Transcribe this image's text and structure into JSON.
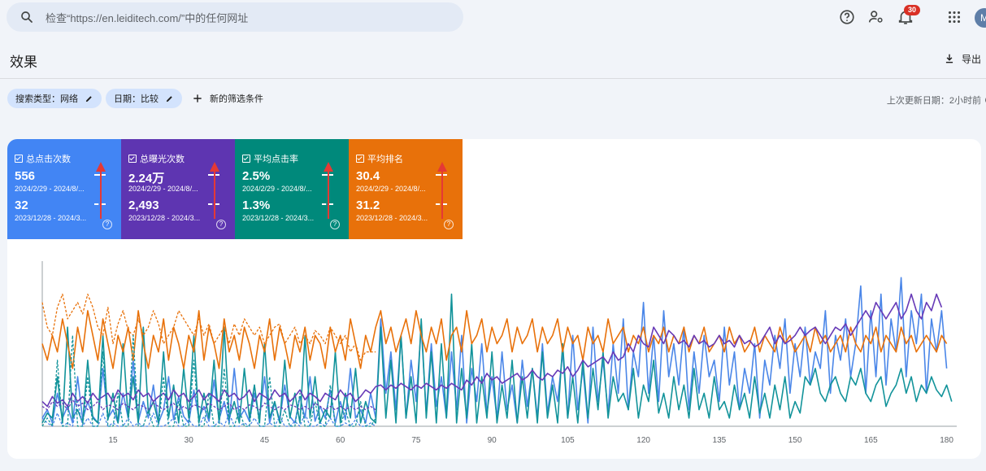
{
  "search": {
    "placeholder": "检查“https://en.leiditech.com/”中的任何网址"
  },
  "topbar": {
    "help_icon": "help-circle-icon",
    "admin_icon": "manage-accounts-icon",
    "notif_icon": "notifications-icon",
    "notif_count": "30",
    "apps_icon": "apps-grid-icon",
    "avatar_initial": "M"
  },
  "page": {
    "title": "效果",
    "export_label": "导出"
  },
  "filters": {
    "chips": [
      {
        "label": "搜索类型：网络"
      },
      {
        "label": "日期：比较"
      }
    ],
    "add_label": "新的筛选条件",
    "updated": "上次更新日期：2小时前"
  },
  "cards": [
    {
      "label": "总点击次数",
      "value1": "556",
      "date1": "2024/2/29 - 2024/8/...",
      "value2": "32",
      "date2": "2023/12/28 - 2024/3...",
      "color": "#4285f4"
    },
    {
      "label": "总曝光次数",
      "value1": "2.24万",
      "date1": "2024/2/29 - 2024/8/...",
      "value2": "2,493",
      "date2": "2023/12/28 - 2024/3...",
      "color": "#5e35b1"
    },
    {
      "label": "平均点击率",
      "value1": "2.5%",
      "date1": "2024/2/29 - 2024/8/...",
      "value2": "1.3%",
      "date2": "2023/12/28 - 2024/3...",
      "color": "#00897b"
    },
    {
      "label": "平均排名",
      "value1": "30.4",
      "date1": "2024/2/29 - 2024/8/...",
      "value2": "31.2",
      "date2": "2023/12/28 - 2024/3...",
      "color": "#e8710a"
    }
  ],
  "chart_data": {
    "type": "line",
    "x_ticks": [
      15,
      30,
      45,
      60,
      75,
      90,
      105,
      120,
      135,
      150,
      165,
      180
    ],
    "xlim": [
      1,
      182
    ],
    "ylim": [
      0,
      1
    ],
    "grid": false,
    "series": [
      {
        "color": "#4a86e8",
        "values": [
          0.05,
          0.1,
          0.02,
          0.2,
          0.05,
          0.12,
          0.02,
          0.3,
          0.04,
          0.15,
          0.06,
          0.02,
          0.35,
          0.05,
          0.1,
          0.02,
          0.2,
          0.05,
          0.4,
          0.03,
          0.15,
          0.05,
          0.25,
          0.02,
          0.1,
          0.3,
          0.04,
          0.18,
          0.06,
          0.02,
          0.22,
          0.05,
          0.12,
          0.03,
          0.28,
          0.04,
          0.15,
          0.02,
          0.35,
          0.05,
          0.1,
          0.03,
          0.2,
          0.05,
          0.3,
          0.02,
          0.14,
          0.04,
          0.25,
          0.06,
          0.02,
          0.18,
          0.05,
          0.3,
          0.03,
          0.12,
          0.05,
          0.22,
          0.02,
          0.15,
          0.04,
          0.35,
          0.05,
          0.1,
          0.02,
          0.2,
          0.05,
          0.65,
          0.2,
          0.45,
          0.1,
          0.55,
          0.05,
          0.4,
          0.15,
          0.6,
          0.08,
          0.5,
          0.12,
          0.3,
          0.05,
          0.45,
          0.1,
          0.55,
          0.02,
          0.35,
          0.15,
          0.5,
          0.08,
          0.3,
          0.05,
          0.45,
          0.1,
          0.25,
          0.02,
          0.4,
          0.12,
          0.35,
          0.05,
          0.5,
          0.08,
          0.3,
          0.15,
          0.45,
          0.05,
          0.55,
          0.1,
          0.35,
          0.02,
          0.6,
          0.15,
          0.4,
          0.08,
          0.5,
          0.2,
          0.65,
          0.1,
          0.45,
          0.3,
          0.75,
          0.2,
          0.55,
          0.15,
          0.7,
          0.3,
          0.5,
          0.25,
          0.6,
          0.1,
          0.45,
          0.2,
          0.55,
          0.3,
          0.4,
          0.15,
          0.6,
          0.25,
          0.45,
          0.1,
          0.35,
          0.2,
          0.5,
          0.05,
          0.4,
          0.25,
          0.55,
          0.35,
          0.65,
          0.2,
          0.5,
          0.3,
          0.6,
          0.25,
          0.45,
          0.35,
          0.7,
          0.2,
          0.55,
          0.4,
          0.65,
          0.3,
          0.5,
          0.85,
          0.2,
          0.7,
          0.3,
          0.8,
          0.25,
          0.65,
          0.45,
          0.9,
          0.3,
          0.7,
          0.5,
          0.8,
          0.2,
          0.65,
          0.45,
          0.7,
          0.35
        ]
      },
      {
        "color": "#12939a",
        "values": [
          0.02,
          0.08,
          0.05,
          0.3,
          0.02,
          0.6,
          0.05,
          0.1,
          0.02,
          0.4,
          0.05,
          0.02,
          0.55,
          0.04,
          0.2,
          0.02,
          0.5,
          0.05,
          0.3,
          0.02,
          0.6,
          0.08,
          0.15,
          0.02,
          0.45,
          0.05,
          0.25,
          0.02,
          0.35,
          0.05,
          0.55,
          0.02,
          0.2,
          0.05,
          0.4,
          0.02,
          0.6,
          0.05,
          0.15,
          0.02,
          0.35,
          0.05,
          0.25,
          0.02,
          0.5,
          0.05,
          0.15,
          0.02,
          0.4,
          0.05,
          0.2,
          0.02,
          0.55,
          0.05,
          0.3,
          0.02,
          0.1,
          0.05,
          0.45,
          0.02,
          0.2,
          0.05,
          0.35,
          0.02,
          0.15,
          0.05,
          0.02,
          0.6,
          0.05,
          0.4,
          0.02,
          0.55,
          0.05,
          0.3,
          0.02,
          0.65,
          0.05,
          0.45,
          0.02,
          0.5,
          0.05,
          0.8,
          0.02,
          0.35,
          0.05,
          0.5,
          0.02,
          0.3,
          0.05,
          0.45,
          0.02,
          0.25,
          0.05,
          0.4,
          0.02,
          0.3,
          0.05,
          0.35,
          0.02,
          0.45,
          0.05,
          0.25,
          0.02,
          0.5,
          0.05,
          0.3,
          0.02,
          0.4,
          0.05,
          0.35,
          0.1,
          0.45,
          0.05,
          0.3,
          0.15,
          0.2,
          0.1,
          0.35,
          0.05,
          0.25,
          0.15,
          0.4,
          0.08,
          0.2,
          0.05,
          0.3,
          0.1,
          0.25,
          0.05,
          0.35,
          0.1,
          0.2,
          0.05,
          0.3,
          0.1,
          0.15,
          0.05,
          0.25,
          0.1,
          0.2,
          0.05,
          0.3,
          0.08,
          0.2,
          0.05,
          0.25,
          0.1,
          0.3,
          0.05,
          0.15,
          0.08,
          0.3,
          0.25,
          0.35,
          0.2,
          0.15,
          0.25,
          0.3,
          0.2,
          0.15,
          0.3,
          0.25,
          0.35,
          0.2,
          0.15,
          0.25,
          0.3,
          0.12,
          0.2,
          0.25,
          0.35,
          0.2,
          0.3,
          0.15,
          0.25,
          0.2,
          0.3,
          0.22,
          0.18,
          0.25,
          0.15
        ]
      },
      {
        "color": "#e8710a",
        "values": [
          0.5,
          0.4,
          0.55,
          0.45,
          0.65,
          0.5,
          0.35,
          0.6,
          0.45,
          0.7,
          0.55,
          0.4,
          0.65,
          0.5,
          0.35,
          0.55,
          0.45,
          0.6,
          0.4,
          0.7,
          0.5,
          0.35,
          0.55,
          0.45,
          0.65,
          0.4,
          0.6,
          0.5,
          0.35,
          0.55,
          0.45,
          0.7,
          0.4,
          0.6,
          0.5,
          0.35,
          0.65,
          0.45,
          0.55,
          0.4,
          0.6,
          0.5,
          0.35,
          0.55,
          0.45,
          0.65,
          0.4,
          0.6,
          0.5,
          0.35,
          0.55,
          0.45,
          0.6,
          0.4,
          0.55,
          0.5,
          0.35,
          0.6,
          0.45,
          0.55,
          0.4,
          0.65,
          0.5,
          0.35,
          0.55,
          0.45,
          0.6,
          0.7,
          0.5,
          0.6,
          0.45,
          0.55,
          0.65,
          0.5,
          0.7,
          0.55,
          0.45,
          0.6,
          0.5,
          0.65,
          0.4,
          0.55,
          0.6,
          0.45,
          0.7,
          0.5,
          0.55,
          0.65,
          0.45,
          0.6,
          0.5,
          0.55,
          0.65,
          0.45,
          0.6,
          0.5,
          0.55,
          0.65,
          0.45,
          0.6,
          0.5,
          0.55,
          0.65,
          0.45,
          0.6,
          0.5,
          0.55,
          0.4,
          0.6,
          0.5,
          0.55,
          0.45,
          0.65,
          0.5,
          0.55,
          0.6,
          0.45,
          0.55,
          0.5,
          0.6,
          0.45,
          0.55,
          0.5,
          0.6,
          0.45,
          0.55,
          0.5,
          0.6,
          0.45,
          0.55,
          0.5,
          0.6,
          0.45,
          0.5,
          0.55,
          0.45,
          0.6,
          0.5,
          0.55,
          0.45,
          0.5,
          0.6,
          0.45,
          0.55,
          0.5,
          0.45,
          0.6,
          0.5,
          0.55,
          0.45,
          0.5,
          0.55,
          0.45,
          0.6,
          0.5,
          0.55,
          0.45,
          0.5,
          0.55,
          0.45,
          0.6,
          0.5,
          0.45,
          0.55,
          0.5,
          0.6,
          0.45,
          0.55,
          0.5,
          0.45,
          0.6,
          0.5,
          0.55,
          0.45,
          0.5,
          0.55,
          0.5,
          0.45,
          0.55,
          0.5
        ]
      },
      {
        "color": "#673ab7",
        "values": [
          0.15,
          0.12,
          0.18,
          0.14,
          0.16,
          0.12,
          0.2,
          0.15,
          0.18,
          0.14,
          0.2,
          0.16,
          0.18,
          0.2,
          0.15,
          0.22,
          0.18,
          0.2,
          0.16,
          0.22,
          0.18,
          0.2,
          0.15,
          0.18,
          0.2,
          0.16,
          0.22,
          0.18,
          0.2,
          0.15,
          0.18,
          0.22,
          0.16,
          0.2,
          0.18,
          0.15,
          0.22,
          0.18,
          0.2,
          0.16,
          0.18,
          0.22,
          0.15,
          0.2,
          0.18,
          0.16,
          0.22,
          0.18,
          0.2,
          0.15,
          0.18,
          0.22,
          0.16,
          0.2,
          0.18,
          0.15,
          0.2,
          0.18,
          0.16,
          0.22,
          0.18,
          0.2,
          0.15,
          0.18,
          0.22,
          0.2,
          0.24,
          0.25,
          0.22,
          0.25,
          0.23,
          0.26,
          0.24,
          0.22,
          0.25,
          0.23,
          0.26,
          0.24,
          0.22,
          0.25,
          0.23,
          0.26,
          0.24,
          0.22,
          0.28,
          0.25,
          0.3,
          0.26,
          0.32,
          0.28,
          0.3,
          0.26,
          0.28,
          0.3,
          0.32,
          0.28,
          0.3,
          0.34,
          0.3,
          0.28,
          0.32,
          0.3,
          0.34,
          0.32,
          0.36,
          0.3,
          0.34,
          0.4,
          0.36,
          0.38,
          0.4,
          0.42,
          0.38,
          0.45,
          0.4,
          0.42,
          0.5,
          0.45,
          0.55,
          0.5,
          0.48,
          0.6,
          0.55,
          0.5,
          0.58,
          0.55,
          0.5,
          0.52,
          0.48,
          0.55,
          0.5,
          0.52,
          0.48,
          0.5,
          0.55,
          0.5,
          0.52,
          0.48,
          0.55,
          0.5,
          0.52,
          0.48,
          0.5,
          0.55,
          0.6,
          0.5,
          0.55,
          0.5,
          0.52,
          0.55,
          0.6,
          0.55,
          0.58,
          0.6,
          0.55,
          0.5,
          0.55,
          0.6,
          0.58,
          0.62,
          0.55,
          0.6,
          0.65,
          0.7,
          0.65,
          0.75,
          0.7,
          0.65,
          0.7,
          0.75,
          0.65,
          0.7,
          0.8,
          0.7,
          0.65,
          0.75,
          0.7,
          0.8,
          0.72
        ]
      },
      {
        "color": "#e8710a",
        "dashed": true,
        "values": [
          0.75,
          0.6,
          0.55,
          0.72,
          0.8,
          0.65,
          0.7,
          0.75,
          0.68,
          0.8,
          0.72,
          0.6,
          0.55,
          0.72,
          0.5,
          0.62,
          0.7,
          0.58,
          0.55,
          0.65,
          0.55,
          0.6,
          0.7,
          0.62,
          0.5,
          0.55,
          0.6,
          0.7,
          0.65,
          0.6,
          0.55,
          0.65,
          0.55,
          0.62,
          0.5,
          0.55,
          0.6,
          0.5,
          0.62,
          0.55,
          0.65,
          0.6,
          0.55,
          0.6,
          0.5,
          0.55,
          0.6,
          0.62,
          0.5,
          0.55,
          0.6,
          0.5,
          0.55,
          0.5,
          0.58,
          0.55,
          0.5,
          0.6,
          0.55,
          0.5,
          0.55,
          0.45,
          0.5,
          0.4,
          0.45,
          0.45,
          0.45
        ]
      },
      {
        "color": "#4a86e8",
        "dashed": true,
        "values": [
          0.05,
          0.02,
          0.0,
          0.08,
          0.0,
          0.02,
          0.0,
          0.15,
          0.0,
          0.05,
          0.0,
          0.0,
          0.08,
          0.0,
          0.02,
          0.0,
          0.0,
          0.05,
          0.0,
          0.02,
          0.0,
          0.0,
          0.08,
          0.0,
          0.0,
          0.02,
          0.05,
          0.0,
          0.0,
          0.04,
          0.0,
          0.0,
          0.06,
          0.0,
          0.0,
          0.03,
          0.0,
          0.08,
          0.0,
          0.0,
          0.02,
          0.0,
          0.05,
          0.0,
          0.0,
          0.02,
          0.0,
          0.06,
          0.0,
          0.0,
          0.03,
          0.0,
          0.08,
          0.0,
          0.0,
          0.02,
          0.0,
          0.05,
          0.0,
          0.0,
          0.02,
          0.0,
          0.04,
          0.0,
          0.0,
          0.02,
          0.0
        ]
      },
      {
        "color": "#12939a",
        "dashed": true,
        "values": [
          0.0,
          0.05,
          0.0,
          0.4,
          0.0,
          0.0,
          0.55,
          0.0,
          0.0,
          0.3,
          0.0,
          0.0,
          0.45,
          0.0,
          0.0,
          0.2,
          0.0,
          0.0,
          0.55,
          0.0,
          0.0,
          0.1,
          0.0,
          0.0,
          0.3,
          0.0,
          0.0,
          0.15,
          0.0,
          0.0,
          0.4,
          0.0,
          0.0,
          0.2,
          0.0,
          0.0,
          0.35,
          0.0,
          0.0,
          0.1,
          0.0,
          0.0,
          0.25,
          0.0,
          0.0,
          0.3,
          0.0,
          0.0,
          0.1,
          0.0,
          0.0,
          0.2,
          0.0,
          0.0,
          0.15,
          0.0,
          0.0,
          0.25,
          0.0,
          0.0,
          0.1,
          0.0,
          0.0,
          0.15,
          0.0,
          0.0,
          0.05
        ]
      },
      {
        "color": "#673ab7",
        "dashed": true,
        "values": [
          0.12,
          0.1,
          0.15,
          0.12,
          0.14,
          0.1,
          0.16,
          0.12,
          0.14,
          0.1,
          0.12,
          0.15,
          0.1,
          0.13,
          0.12,
          0.1,
          0.14,
          0.12,
          0.1,
          0.13,
          0.12,
          0.1,
          0.14,
          0.12,
          0.1,
          0.12,
          0.14,
          0.1,
          0.12,
          0.1,
          0.13,
          0.12,
          0.1,
          0.14,
          0.12,
          0.1,
          0.12,
          0.14,
          0.1,
          0.12,
          0.1,
          0.13,
          0.12,
          0.1,
          0.14,
          0.12,
          0.1,
          0.12,
          0.1,
          0.13,
          0.12,
          0.1,
          0.12,
          0.1,
          0.14,
          0.12,
          0.1,
          0.12,
          0.1,
          0.12,
          0.1,
          0.12,
          0.1,
          0.12,
          0.1,
          0.12,
          0.1
        ]
      }
    ]
  }
}
